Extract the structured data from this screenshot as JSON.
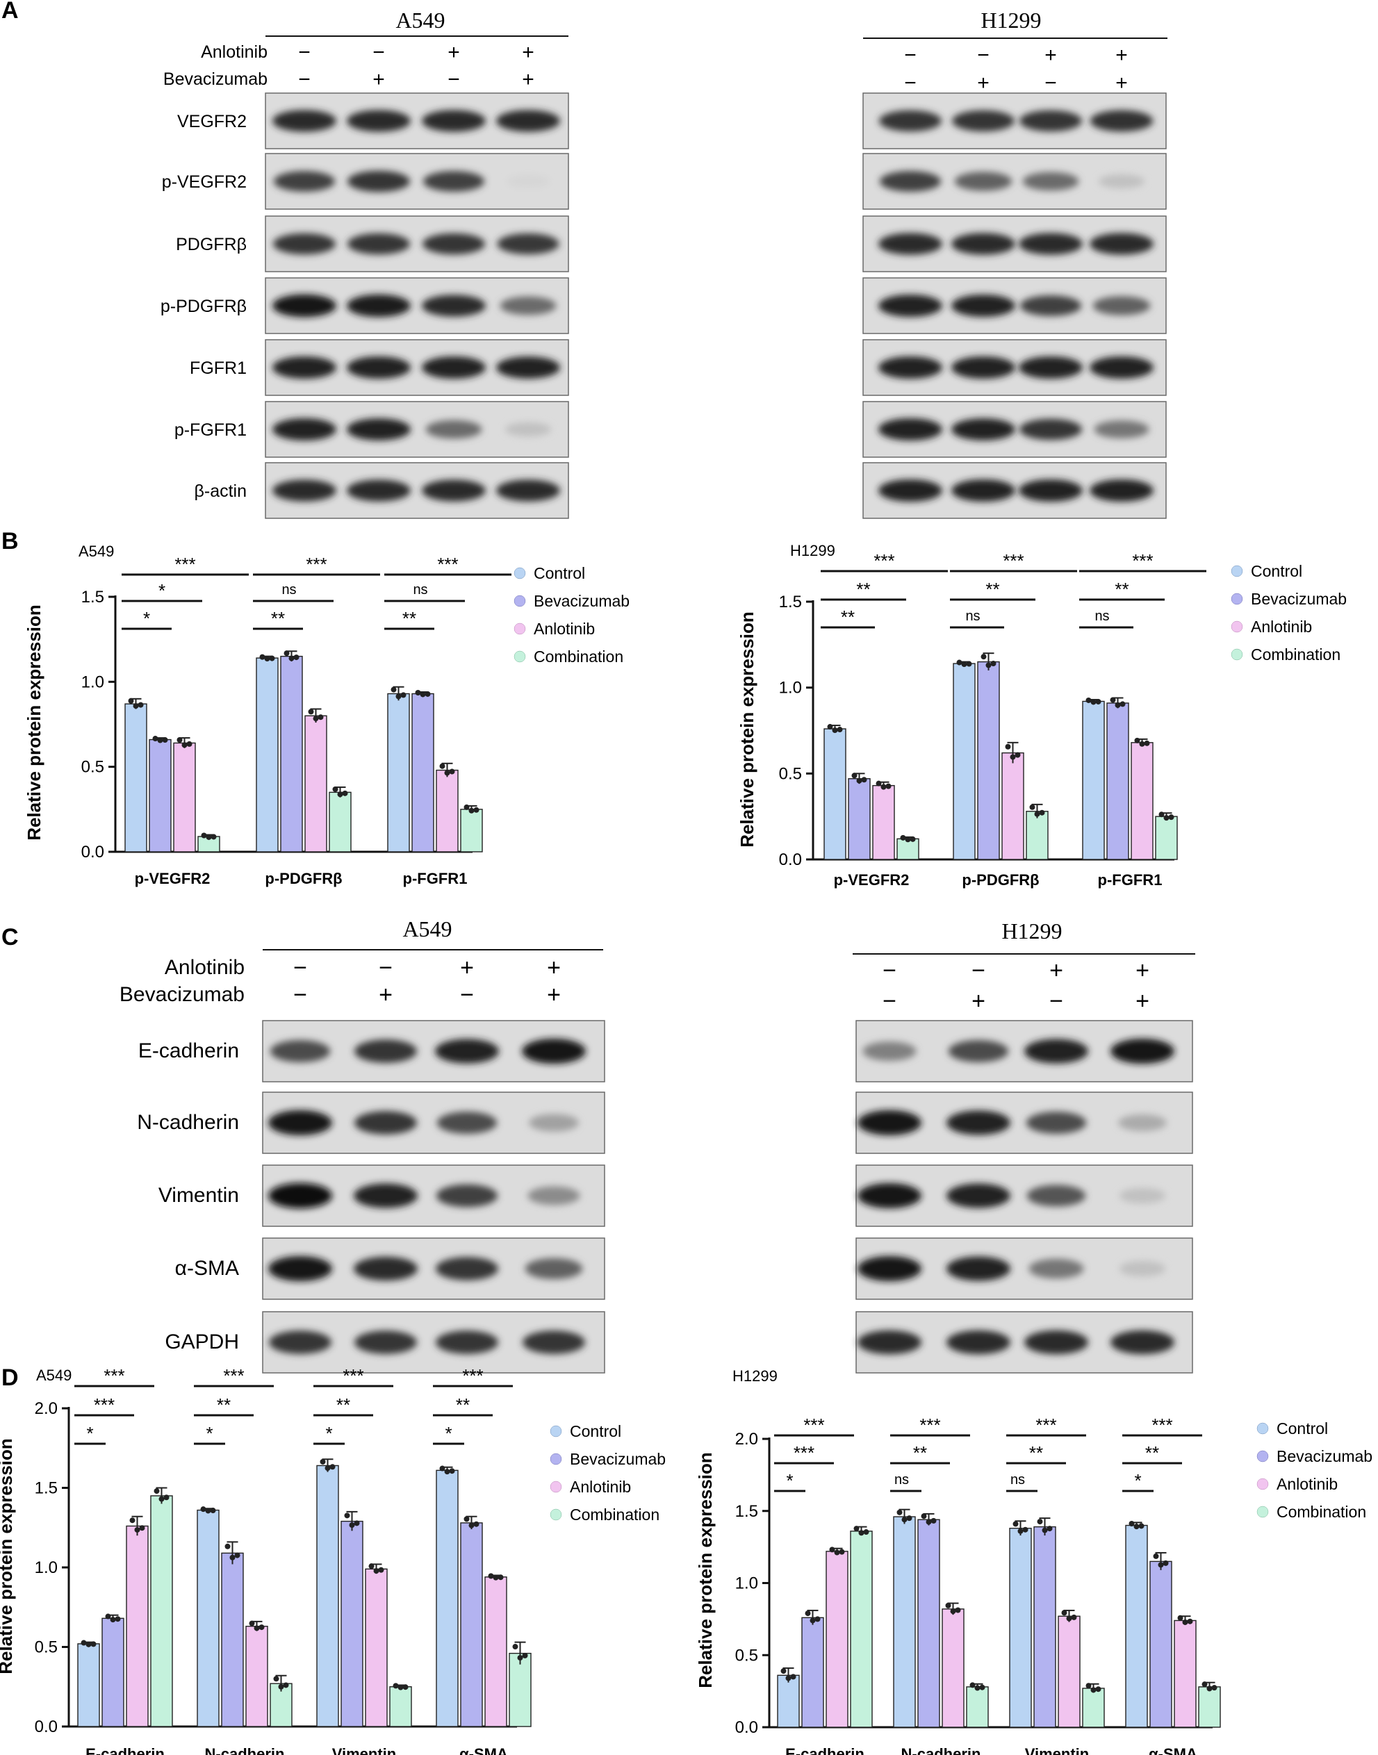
{
  "panels": {
    "A": {
      "letter": "A",
      "blots": [
        {
          "cell_line": "A549",
          "row_labels": [
            "Anlotinib",
            "Bevacizumab"
          ],
          "anlotinib": [
            "−",
            "−",
            "+",
            "+"
          ],
          "bevacizumab": [
            "−",
            "+",
            "−",
            "+"
          ],
          "proteins": [
            "VEGFR2",
            "p-VEGFR2",
            "PDGFRβ",
            "p-PDGFRβ",
            "FGFR1",
            "p-FGFR1",
            "β-actin"
          ],
          "band_intensity": [
            [
              0.85,
              0.85,
              0.85,
              0.85
            ],
            [
              0.75,
              0.8,
              0.75,
              0.05
            ],
            [
              0.8,
              0.8,
              0.8,
              0.78
            ],
            [
              0.95,
              0.92,
              0.85,
              0.55
            ],
            [
              0.9,
              0.9,
              0.9,
              0.88
            ],
            [
              0.9,
              0.88,
              0.55,
              0.15
            ],
            [
              0.85,
              0.85,
              0.85,
              0.85
            ]
          ]
        },
        {
          "cell_line": "H1299",
          "row_labels": [
            "",
            ""
          ],
          "anlotinib": [
            "−",
            "−",
            "+",
            "+"
          ],
          "bevacizumab": [
            "−",
            "+",
            "−",
            "+"
          ],
          "proteins": [
            "VEGFR2",
            "p-VEGFR2",
            "PDGFRβ",
            "p-PDGFRβ",
            "FGFR1",
            "p-FGFR1",
            "β-actin"
          ],
          "band_intensity": [
            [
              0.8,
              0.8,
              0.8,
              0.82
            ],
            [
              0.75,
              0.6,
              0.55,
              0.15
            ],
            [
              0.85,
              0.85,
              0.85,
              0.85
            ],
            [
              0.9,
              0.9,
              0.75,
              0.6
            ],
            [
              0.9,
              0.9,
              0.9,
              0.9
            ],
            [
              0.9,
              0.88,
              0.8,
              0.5
            ],
            [
              0.9,
              0.9,
              0.9,
              0.9
            ]
          ]
        }
      ]
    },
    "B": {
      "letter": "B"
    },
    "C": {
      "letter": "C",
      "blots": [
        {
          "cell_line": "A549",
          "row_labels": [
            "Anlotinib",
            "Bevacizumab"
          ],
          "anlotinib": [
            "−",
            "−",
            "+",
            "+"
          ],
          "bevacizumab": [
            "−",
            "+",
            "−",
            "+"
          ],
          "proteins": [
            "E-cadherin",
            "N-cadherin",
            "Vimentin",
            "α-SMA",
            "GAPDH"
          ],
          "band_intensity": [
            [
              0.7,
              0.8,
              0.9,
              0.95
            ],
            [
              0.95,
              0.8,
              0.7,
              0.3
            ],
            [
              0.98,
              0.9,
              0.75,
              0.4
            ],
            [
              0.95,
              0.85,
              0.8,
              0.6
            ],
            [
              0.8,
              0.8,
              0.8,
              0.8
            ]
          ]
        },
        {
          "cell_line": "H1299",
          "row_labels": [
            "",
            ""
          ],
          "anlotinib": [
            "−",
            "−",
            "+",
            "+"
          ],
          "bevacizumab": [
            "−",
            "+",
            "−",
            "+"
          ],
          "proteins": [
            "",
            "",
            "",
            "",
            ""
          ],
          "band_intensity": [
            [
              0.45,
              0.7,
              0.9,
              0.95
            ],
            [
              0.95,
              0.9,
              0.7,
              0.25
            ],
            [
              0.95,
              0.9,
              0.65,
              0.15
            ],
            [
              0.95,
              0.9,
              0.5,
              0.15
            ],
            [
              0.85,
              0.85,
              0.85,
              0.85
            ]
          ]
        }
      ]
    },
    "D": {
      "letter": "D"
    }
  },
  "legend_colors": {
    "Control": "#b9d4f3",
    "Bevacizumab": "#b3b3f0",
    "Anlotinib": "#f1c4ef",
    "Combination": "#c4f1dc"
  },
  "chart_data": [
    {
      "panel": "B",
      "type": "bar",
      "cell_line": "A549",
      "categories": [
        "p-VEGFR2",
        "p-PDGFRβ",
        "p-FGFR1"
      ],
      "ylabel": "Relative protein expression",
      "ylim": [
        0,
        1.5
      ],
      "yticks": [
        "0.0",
        "0.5",
        "1.0",
        "1.5"
      ],
      "legend": "top-right",
      "series": [
        {
          "name": "Control",
          "values": [
            0.87,
            1.14,
            0.93
          ],
          "errors": [
            0.03,
            0.01,
            0.04
          ]
        },
        {
          "name": "Bevacizumab",
          "values": [
            0.66,
            1.15,
            0.93
          ],
          "errors": [
            0.01,
            0.03,
            0.01
          ]
        },
        {
          "name": "Anlotinib",
          "values": [
            0.64,
            0.8,
            0.48
          ],
          "errors": [
            0.03,
            0.04,
            0.04
          ]
        },
        {
          "name": "Combination",
          "values": [
            0.09,
            0.35,
            0.25
          ],
          "errors": [
            0.01,
            0.03,
            0.02
          ]
        }
      ],
      "significance": [
        [
          "*",
          "**",
          "**"
        ],
        [
          "*",
          "ns",
          "ns"
        ],
        [
          "***",
          "***",
          "***"
        ]
      ]
    },
    {
      "panel": "B",
      "type": "bar",
      "cell_line": "H1299",
      "categories": [
        "p-VEGFR2",
        "p-PDGFRβ",
        "p-FGFR1"
      ],
      "ylabel": "Relative protein expression",
      "ylim": [
        0,
        1.5
      ],
      "yticks": [
        "0.0",
        "0.5",
        "1.0",
        "1.5"
      ],
      "legend": "top-right",
      "series": [
        {
          "name": "Control",
          "values": [
            0.76,
            1.14,
            0.92
          ],
          "errors": [
            0.02,
            0.01,
            0.01
          ]
        },
        {
          "name": "Bevacizumab",
          "values": [
            0.47,
            1.15,
            0.91
          ],
          "errors": [
            0.03,
            0.05,
            0.03
          ]
        },
        {
          "name": "Anlotinib",
          "values": [
            0.43,
            0.62,
            0.68
          ],
          "errors": [
            0.02,
            0.06,
            0.02
          ]
        },
        {
          "name": "Combination",
          "values": [
            0.12,
            0.28,
            0.25
          ],
          "errors": [
            0.01,
            0.04,
            0.02
          ]
        }
      ],
      "significance": [
        [
          "**",
          "ns",
          "ns"
        ],
        [
          "**",
          "**",
          "**"
        ],
        [
          "***",
          "***",
          "***"
        ]
      ]
    },
    {
      "panel": "D",
      "type": "bar",
      "cell_line": "A549",
      "categories": [
        "E-cadherin",
        "N-cadherin",
        "Vimentin",
        "α-SMA"
      ],
      "ylabel": "Relative protein expression",
      "ylim": [
        0,
        2.0
      ],
      "yticks": [
        "0.0",
        "0.5",
        "1.0",
        "1.5",
        "2.0"
      ],
      "legend": "top-right",
      "series": [
        {
          "name": "Control",
          "values": [
            0.52,
            1.36,
            1.64,
            1.61
          ],
          "errors": [
            0.01,
            0.01,
            0.04,
            0.02
          ]
        },
        {
          "name": "Bevacizumab",
          "values": [
            0.68,
            1.09,
            1.29,
            1.28
          ],
          "errors": [
            0.02,
            0.07,
            0.06,
            0.04
          ]
        },
        {
          "name": "Anlotinib",
          "values": [
            1.26,
            0.63,
            0.99,
            0.94
          ],
          "errors": [
            0.06,
            0.03,
            0.03,
            0.01
          ]
        },
        {
          "name": "Combination",
          "values": [
            1.45,
            0.27,
            0.25,
            0.46
          ],
          "errors": [
            0.05,
            0.05,
            0.01,
            0.07
          ]
        }
      ],
      "significance": [
        [
          "*",
          "*",
          "*",
          "*"
        ],
        [
          "***",
          "**",
          "**",
          "**"
        ],
        [
          "***",
          "***",
          "***",
          "***"
        ]
      ]
    },
    {
      "panel": "D",
      "type": "bar",
      "cell_line": "H1299",
      "categories": [
        "E-cadherin",
        "N-cadherin",
        "Vimentin",
        "α-SMA"
      ],
      "ylabel": "Relative protein expression",
      "ylim": [
        0,
        2.0
      ],
      "yticks": [
        "0.0",
        "0.5",
        "1.0",
        "1.5",
        "2.0"
      ],
      "legend": "top-right",
      "series": [
        {
          "name": "Control",
          "values": [
            0.36,
            1.46,
            1.38,
            1.4
          ],
          "errors": [
            0.05,
            0.05,
            0.05,
            0.02
          ]
        },
        {
          "name": "Bevacizumab",
          "values": [
            0.76,
            1.44,
            1.39,
            1.15
          ],
          "errors": [
            0.05,
            0.04,
            0.06,
            0.06
          ]
        },
        {
          "name": "Anlotinib",
          "values": [
            1.22,
            0.82,
            0.77,
            0.74
          ],
          "errors": [
            0.02,
            0.04,
            0.04,
            0.03
          ]
        },
        {
          "name": "Combination",
          "values": [
            1.36,
            0.28,
            0.27,
            0.28
          ],
          "errors": [
            0.03,
            0.02,
            0.03,
            0.03
          ]
        }
      ],
      "significance": [
        [
          "*",
          "ns",
          "ns",
          "*"
        ],
        [
          "***",
          "**",
          "**",
          "**"
        ],
        [
          "***",
          "***",
          "***",
          "***"
        ]
      ]
    }
  ]
}
